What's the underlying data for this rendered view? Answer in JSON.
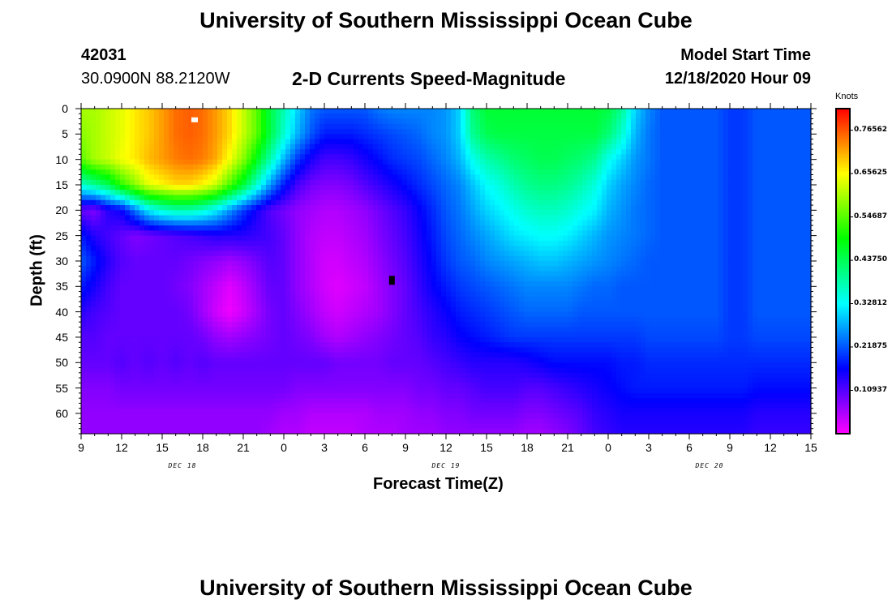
{
  "page": {
    "title_top": "University of Southern Mississippi Ocean Cube",
    "title_bottom": "University of Southern Mississippi Ocean Cube",
    "station_id": "42031",
    "station_coords": "30.0900N 88.2120W",
    "product_title": "2-D Currents Speed-Magnitude",
    "model_start_label": "Model Start Time",
    "model_start_value": "12/18/2020 Hour 09"
  },
  "chart_data": {
    "type": "heatmap",
    "title": "2-D Currents Speed-Magnitude",
    "xlabel": "Forecast Time(Z)",
    "ylabel": "Depth (ft)",
    "x_range_hours_from_start": [
      0,
      54
    ],
    "x_tick_labels": [
      "9",
      "12",
      "15",
      "18",
      "21",
      "0",
      "3",
      "6",
      "9",
      "12",
      "15",
      "18",
      "21",
      "0",
      "3",
      "6",
      "9",
      "12",
      "15"
    ],
    "day_labels": [
      {
        "text": "DEC 18",
        "at_tick": "15-18"
      },
      {
        "text": "DEC 19",
        "at_tick": "6-9"
      },
      {
        "text": "DEC 20",
        "at_tick": "6-9"
      }
    ],
    "y_range": [
      0,
      64
    ],
    "y_tick_labels": [
      "0",
      "5",
      "10",
      "15",
      "20",
      "25",
      "30",
      "35",
      "40",
      "45",
      "50",
      "55",
      "60"
    ],
    "y_inverted": true,
    "colorbar": {
      "title": "Knots",
      "min": 0.0,
      "max": 0.82,
      "tick_labels": [
        "0.76562",
        "0.65625",
        "0.54687",
        "0.43750",
        "0.32812",
        "0.21875",
        "0.10937"
      ],
      "tick_values": [
        0.765625,
        0.65625,
        0.546875,
        0.4375,
        0.328125,
        0.21875,
        0.109375
      ],
      "colors": [
        "#ff00ff",
        "#7f00ff",
        "#0000ff",
        "#0080ff",
        "#00ffff",
        "#00ff80",
        "#00ff00",
        "#80ff00",
        "#ffff00",
        "#ff8000",
        "#ff0000"
      ]
    },
    "markers": [
      {
        "kind": "max",
        "color": "#ffffff",
        "x_hours": 8.4,
        "depth_ft": 2.2
      },
      {
        "kind": "min",
        "color": "#000000",
        "x_hours": 23,
        "depth_ft": 33.8
      }
    ],
    "value_grid": {
      "x_hours": [
        0,
        1,
        2,
        3,
        4,
        5,
        6,
        7,
        8,
        9,
        10,
        11,
        12,
        13,
        14,
        15,
        16,
        17,
        18,
        19,
        20,
        21,
        22,
        23,
        24,
        25,
        26,
        27,
        28,
        29,
        30,
        31,
        32,
        33,
        34,
        35,
        36,
        37,
        38,
        39,
        40,
        41,
        42,
        43,
        44,
        45,
        46,
        47,
        48,
        49,
        50,
        51,
        52,
        53,
        54
      ],
      "depth_ft": [
        0,
        5,
        10,
        15,
        20,
        25,
        30,
        35,
        40,
        45,
        50,
        55,
        60,
        64
      ],
      "values": [
        [
          0.6,
          0.6,
          0.62,
          0.64,
          0.67,
          0.69,
          0.72,
          0.75,
          0.76,
          0.75,
          0.72,
          0.68,
          0.62,
          0.55,
          0.45,
          0.38,
          0.3,
          0.24,
          0.22,
          0.22,
          0.22,
          0.22,
          0.24,
          0.25,
          0.25,
          0.25,
          0.25,
          0.26,
          0.3,
          0.42,
          0.46,
          0.46,
          0.46,
          0.46,
          0.46,
          0.46,
          0.46,
          0.46,
          0.46,
          0.45,
          0.4,
          0.3,
          0.25,
          0.22,
          0.22,
          0.22,
          0.22,
          0.22,
          0.2,
          0.2,
          0.22,
          0.22,
          0.22,
          0.22,
          0.22
        ],
        [
          0.58,
          0.6,
          0.62,
          0.64,
          0.67,
          0.69,
          0.72,
          0.75,
          0.76,
          0.75,
          0.72,
          0.68,
          0.62,
          0.55,
          0.45,
          0.36,
          0.28,
          0.22,
          0.18,
          0.18,
          0.18,
          0.19,
          0.2,
          0.21,
          0.22,
          0.23,
          0.25,
          0.26,
          0.3,
          0.4,
          0.44,
          0.45,
          0.45,
          0.45,
          0.45,
          0.45,
          0.45,
          0.45,
          0.45,
          0.42,
          0.36,
          0.28,
          0.24,
          0.22,
          0.22,
          0.22,
          0.22,
          0.22,
          0.2,
          0.2,
          0.22,
          0.22,
          0.22,
          0.22,
          0.22
        ],
        [
          0.55,
          0.6,
          0.62,
          0.65,
          0.67,
          0.7,
          0.72,
          0.74,
          0.75,
          0.74,
          0.71,
          0.65,
          0.58,
          0.48,
          0.38,
          0.28,
          0.2,
          0.15,
          0.12,
          0.12,
          0.13,
          0.15,
          0.17,
          0.19,
          0.2,
          0.21,
          0.23,
          0.25,
          0.28,
          0.34,
          0.38,
          0.4,
          0.42,
          0.43,
          0.44,
          0.44,
          0.43,
          0.42,
          0.4,
          0.34,
          0.3,
          0.26,
          0.24,
          0.22,
          0.22,
          0.22,
          0.22,
          0.22,
          0.2,
          0.2,
          0.22,
          0.22,
          0.22,
          0.22,
          0.22
        ],
        [
          0.36,
          0.4,
          0.44,
          0.52,
          0.58,
          0.64,
          0.66,
          0.68,
          0.68,
          0.66,
          0.62,
          0.54,
          0.46,
          0.36,
          0.26,
          0.18,
          0.12,
          0.09,
          0.08,
          0.08,
          0.09,
          0.11,
          0.13,
          0.15,
          0.17,
          0.19,
          0.21,
          0.23,
          0.25,
          0.29,
          0.33,
          0.35,
          0.38,
          0.4,
          0.41,
          0.41,
          0.4,
          0.38,
          0.35,
          0.3,
          0.27,
          0.25,
          0.23,
          0.22,
          0.22,
          0.22,
          0.22,
          0.22,
          0.2,
          0.2,
          0.22,
          0.22,
          0.22,
          0.22,
          0.22
        ],
        [
          0.1,
          0.08,
          0.14,
          0.16,
          0.24,
          0.32,
          0.36,
          0.38,
          0.38,
          0.36,
          0.32,
          0.26,
          0.2,
          0.15,
          0.11,
          0.09,
          0.07,
          0.06,
          0.05,
          0.05,
          0.06,
          0.07,
          0.09,
          0.11,
          0.13,
          0.16,
          0.19,
          0.22,
          0.24,
          0.27,
          0.3,
          0.32,
          0.34,
          0.36,
          0.37,
          0.37,
          0.36,
          0.34,
          0.32,
          0.28,
          0.26,
          0.24,
          0.23,
          0.22,
          0.22,
          0.22,
          0.22,
          0.22,
          0.2,
          0.2,
          0.22,
          0.22,
          0.22,
          0.22,
          0.22
        ],
        [
          0.18,
          0.14,
          0.12,
          0.1,
          0.08,
          0.09,
          0.1,
          0.11,
          0.12,
          0.13,
          0.14,
          0.14,
          0.14,
          0.13,
          0.12,
          0.1,
          0.07,
          0.05,
          0.04,
          0.04,
          0.05,
          0.06,
          0.08,
          0.1,
          0.12,
          0.15,
          0.18,
          0.21,
          0.23,
          0.25,
          0.27,
          0.29,
          0.31,
          0.32,
          0.33,
          0.33,
          0.32,
          0.3,
          0.28,
          0.26,
          0.25,
          0.24,
          0.23,
          0.22,
          0.22,
          0.22,
          0.22,
          0.22,
          0.2,
          0.2,
          0.22,
          0.22,
          0.22,
          0.22,
          0.22
        ],
        [
          0.22,
          0.18,
          0.14,
          0.11,
          0.1,
          0.1,
          0.1,
          0.1,
          0.09,
          0.08,
          0.07,
          0.06,
          0.07,
          0.09,
          0.11,
          0.1,
          0.07,
          0.05,
          0.03,
          0.03,
          0.04,
          0.05,
          0.07,
          0.09,
          0.11,
          0.14,
          0.17,
          0.2,
          0.22,
          0.23,
          0.25,
          0.26,
          0.27,
          0.28,
          0.29,
          0.29,
          0.28,
          0.27,
          0.26,
          0.25,
          0.24,
          0.23,
          0.22,
          0.22,
          0.22,
          0.22,
          0.22,
          0.22,
          0.2,
          0.2,
          0.22,
          0.22,
          0.22,
          0.22,
          0.22
        ],
        [
          0.18,
          0.15,
          0.12,
          0.1,
          0.1,
          0.1,
          0.1,
          0.09,
          0.08,
          0.06,
          0.04,
          0.02,
          0.04,
          0.07,
          0.1,
          0.1,
          0.07,
          0.05,
          0.03,
          0.02,
          0.03,
          0.04,
          0.06,
          0.08,
          0.1,
          0.13,
          0.16,
          0.18,
          0.2,
          0.21,
          0.22,
          0.23,
          0.24,
          0.25,
          0.25,
          0.25,
          0.25,
          0.24,
          0.23,
          0.23,
          0.22,
          0.22,
          0.22,
          0.22,
          0.22,
          0.22,
          0.22,
          0.22,
          0.2,
          0.2,
          0.22,
          0.22,
          0.22,
          0.22,
          0.22
        ],
        [
          0.14,
          0.12,
          0.11,
          0.1,
          0.1,
          0.1,
          0.1,
          0.1,
          0.09,
          0.06,
          0.03,
          0.01,
          0.03,
          0.06,
          0.09,
          0.1,
          0.08,
          0.06,
          0.04,
          0.03,
          0.04,
          0.05,
          0.06,
          0.08,
          0.1,
          0.12,
          0.14,
          0.16,
          0.18,
          0.19,
          0.2,
          0.21,
          0.22,
          0.23,
          0.23,
          0.23,
          0.23,
          0.22,
          0.22,
          0.22,
          0.22,
          0.22,
          0.22,
          0.22,
          0.22,
          0.22,
          0.22,
          0.22,
          0.2,
          0.2,
          0.22,
          0.22,
          0.22,
          0.22,
          0.22
        ],
        [
          0.11,
          0.11,
          0.1,
          0.1,
          0.1,
          0.1,
          0.1,
          0.1,
          0.1,
          0.09,
          0.07,
          0.06,
          0.07,
          0.08,
          0.09,
          0.1,
          0.09,
          0.08,
          0.06,
          0.05,
          0.06,
          0.07,
          0.08,
          0.09,
          0.1,
          0.11,
          0.13,
          0.14,
          0.16,
          0.17,
          0.18,
          0.19,
          0.2,
          0.2,
          0.2,
          0.2,
          0.2,
          0.2,
          0.2,
          0.2,
          0.2,
          0.2,
          0.21,
          0.21,
          0.21,
          0.21,
          0.21,
          0.21,
          0.2,
          0.2,
          0.21,
          0.21,
          0.21,
          0.21,
          0.21
        ],
        [
          0.1,
          0.1,
          0.1,
          0.11,
          0.1,
          0.11,
          0.1,
          0.11,
          0.1,
          0.11,
          0.1,
          0.1,
          0.1,
          0.1,
          0.1,
          0.1,
          0.1,
          0.1,
          0.1,
          0.09,
          0.09,
          0.09,
          0.09,
          0.1,
          0.1,
          0.1,
          0.11,
          0.12,
          0.13,
          0.14,
          0.14,
          0.14,
          0.14,
          0.15,
          0.16,
          0.17,
          0.17,
          0.17,
          0.17,
          0.17,
          0.18,
          0.18,
          0.19,
          0.19,
          0.19,
          0.19,
          0.19,
          0.19,
          0.19,
          0.19,
          0.19,
          0.19,
          0.19,
          0.19,
          0.19
        ],
        [
          0.08,
          0.08,
          0.08,
          0.09,
          0.09,
          0.09,
          0.09,
          0.09,
          0.09,
          0.09,
          0.09,
          0.09,
          0.09,
          0.09,
          0.09,
          0.09,
          0.08,
          0.08,
          0.08,
          0.08,
          0.08,
          0.08,
          0.08,
          0.08,
          0.08,
          0.09,
          0.09,
          0.1,
          0.1,
          0.11,
          0.12,
          0.12,
          0.12,
          0.11,
          0.11,
          0.12,
          0.13,
          0.14,
          0.15,
          0.16,
          0.17,
          0.18,
          0.18,
          0.18,
          0.18,
          0.18,
          0.18,
          0.18,
          0.18,
          0.18,
          0.17,
          0.17,
          0.17,
          0.17,
          0.17
        ],
        [
          0.07,
          0.07,
          0.07,
          0.07,
          0.07,
          0.07,
          0.07,
          0.07,
          0.07,
          0.07,
          0.07,
          0.07,
          0.07,
          0.07,
          0.07,
          0.06,
          0.06,
          0.05,
          0.05,
          0.05,
          0.05,
          0.05,
          0.06,
          0.06,
          0.06,
          0.07,
          0.07,
          0.08,
          0.08,
          0.09,
          0.09,
          0.09,
          0.09,
          0.08,
          0.08,
          0.09,
          0.1,
          0.11,
          0.13,
          0.14,
          0.15,
          0.15,
          0.15,
          0.15,
          0.15,
          0.15,
          0.15,
          0.15,
          0.15,
          0.15,
          0.14,
          0.14,
          0.14,
          0.14,
          0.14
        ],
        [
          0.07,
          0.07,
          0.07,
          0.07,
          0.07,
          0.07,
          0.07,
          0.07,
          0.07,
          0.07,
          0.07,
          0.07,
          0.07,
          0.07,
          0.06,
          0.05,
          0.05,
          0.04,
          0.04,
          0.04,
          0.04,
          0.05,
          0.05,
          0.05,
          0.06,
          0.06,
          0.06,
          0.07,
          0.07,
          0.07,
          0.07,
          0.07,
          0.07,
          0.06,
          0.06,
          0.07,
          0.08,
          0.1,
          0.12,
          0.13,
          0.14,
          0.14,
          0.14,
          0.14,
          0.14,
          0.14,
          0.14,
          0.14,
          0.14,
          0.14,
          0.13,
          0.13,
          0.13,
          0.13,
          0.13
        ]
      ]
    }
  }
}
